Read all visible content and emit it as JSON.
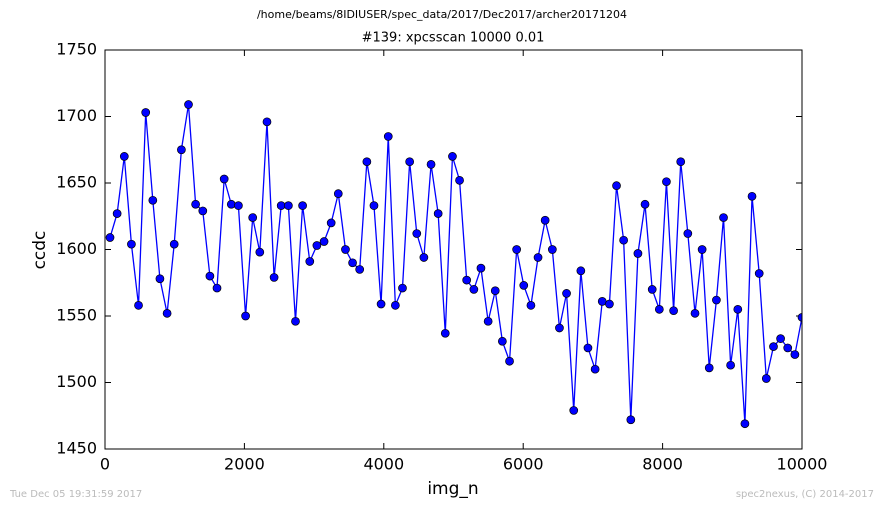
{
  "header": "/home/beams/8IDIUSER/spec_data/2017/Dec2017/archer20171204",
  "footer_left": "Tue Dec 05 19:31:59 2017",
  "footer_right": "spec2nexus, (C) 2014-2017",
  "chart_data": {
    "type": "line",
    "title": "#139: xpcsscan 10000 0.01",
    "x_label": "img_n",
    "y_label": "ccdc",
    "xlim": [
      0,
      10000
    ],
    "xticks": [
      0,
      2000,
      4000,
      6000,
      8000,
      10000
    ],
    "ylim": [
      1450,
      1750
    ],
    "yticks": [
      1450,
      1500,
      1550,
      1600,
      1650,
      1700,
      1750
    ],
    "color": "#0000ff",
    "marker": "circle",
    "x": [
      72,
      174,
      277,
      379,
      481,
      584,
      686,
      788,
      891,
      993,
      1096,
      1198,
      1300,
      1403,
      1505,
      1607,
      1710,
      1812,
      1914,
      2017,
      2119,
      2221,
      2324,
      2426,
      2528,
      2631,
      2733,
      2835,
      2938,
      3040,
      3143,
      3245,
      3347,
      3450,
      3552,
      3654,
      3757,
      3859,
      3961,
      4064,
      4166,
      4268,
      4371,
      4473,
      4575,
      4678,
      4780,
      4882,
      4985,
      5087,
      5189,
      5292,
      5394,
      5497,
      5599,
      5701,
      5804,
      5906,
      6008,
      6111,
      6213,
      6315,
      6418,
      6520,
      6622,
      6725,
      6827,
      6929,
      7032,
      7134,
      7237,
      7339,
      7441,
      7544,
      7646,
      7748,
      7851,
      7953,
      8055,
      8158,
      8260,
      8362,
      8465,
      8567,
      8669,
      8772,
      8874,
      8976,
      9079,
      9181,
      9283,
      9386,
      9488,
      9591,
      9693,
      9795,
      9898,
      10000
    ],
    "values": [
      1609,
      1627,
      1670,
      1604,
      1558,
      1703,
      1637,
      1578,
      1552,
      1604,
      1675,
      1709,
      1634,
      1629,
      1580,
      1571,
      1653,
      1634,
      1633,
      1550,
      1624,
      1598,
      1696,
      1579,
      1633,
      1633,
      1546,
      1633,
      1591,
      1603,
      1606,
      1620,
      1642,
      1600,
      1590,
      1585,
      1666,
      1633,
      1559,
      1685,
      1558,
      1571,
      1666,
      1612,
      1594,
      1664,
      1627,
      1537,
      1670,
      1652,
      1577,
      1570,
      1586,
      1546,
      1569,
      1531,
      1516,
      1600,
      1573,
      1558,
      1594,
      1622,
      1600,
      1541,
      1567,
      1479,
      1584,
      1526,
      1510,
      1561,
      1559,
      1648,
      1607,
      1472,
      1597,
      1634,
      1570,
      1555,
      1651,
      1554,
      1666,
      1612,
      1552,
      1600,
      1511,
      1562,
      1624,
      1513,
      1555,
      1469,
      1640,
      1582,
      1503,
      1527,
      1533,
      1526,
      1521,
      1549
    ]
  }
}
